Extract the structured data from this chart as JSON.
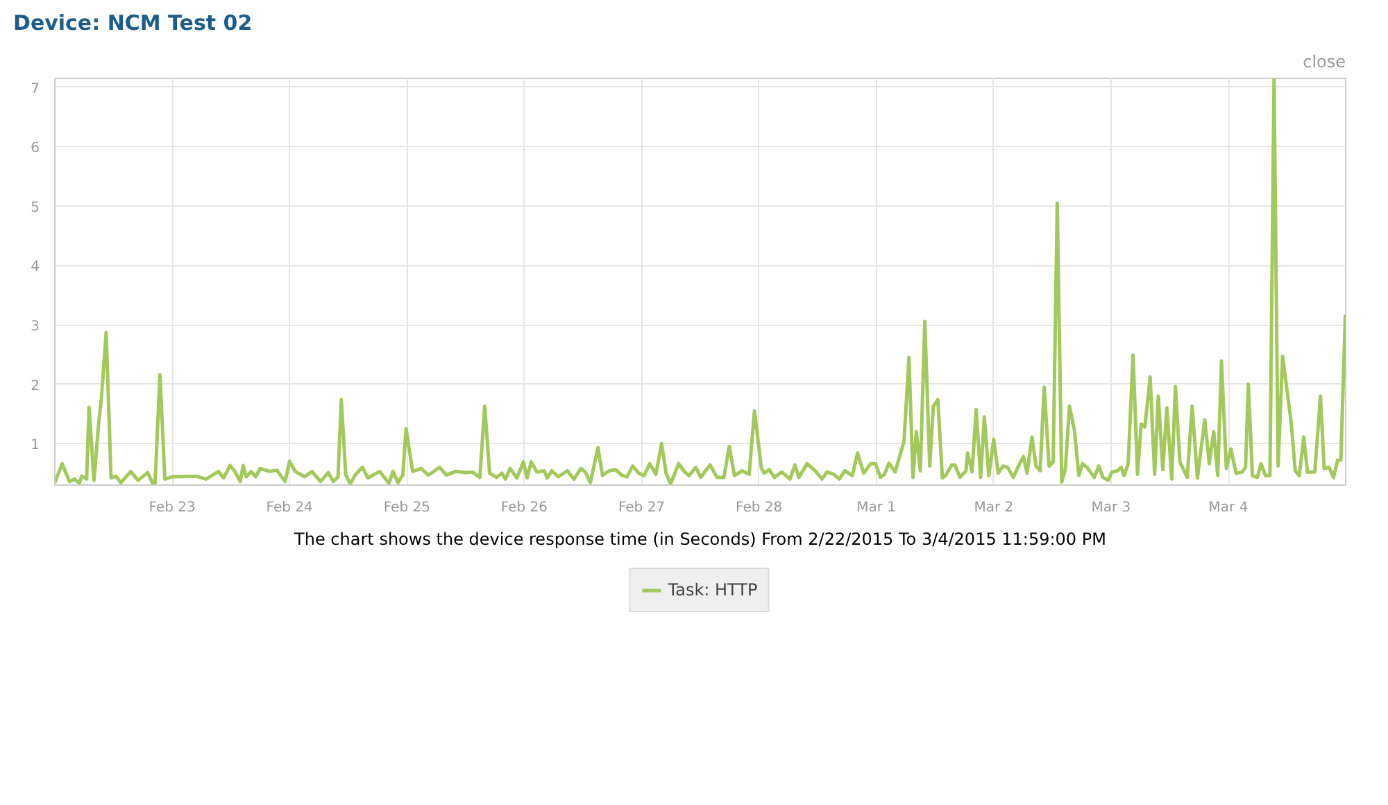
{
  "chart_data": {
    "type": "line",
    "title": "Device: NCM Test 02",
    "annotations": [
      "close",
      "The chart shows the device response time (in Seconds) From 2/22/2015 To 3/4/2015 11:59:00 PM"
    ],
    "xlim": [
      "2015-02-22T00:00",
      "2015-03-04T23:59"
    ],
    "ylim": [
      0.3,
      7.15
    ],
    "xticks": [
      {
        "value": "2015-02-23",
        "label": "Feb 23"
      },
      {
        "value": "2015-02-24",
        "label": "Feb 24"
      },
      {
        "value": "2015-02-25",
        "label": "Feb 25"
      },
      {
        "value": "2015-02-26",
        "label": "Feb 26"
      },
      {
        "value": "2015-02-27",
        "label": "Feb 27"
      },
      {
        "value": "2015-02-28",
        "label": "Feb 28"
      },
      {
        "value": "2015-03-01",
        "label": "Mar 1"
      },
      {
        "value": "2015-03-02",
        "label": "Mar 2"
      },
      {
        "value": "2015-03-03",
        "label": "Mar 3"
      },
      {
        "value": "2015-03-04",
        "label": "Mar 4"
      }
    ],
    "yticks": [
      1,
      2,
      3,
      4,
      5,
      6,
      7
    ],
    "grid": true,
    "legend": "bottom",
    "series": [
      {
        "name": "Task: HTTP",
        "color": "#a3c95c",
        "x": [
          "2015-02-22T00:00",
          "2015-02-22T01:30",
          "2015-02-22T03:00",
          "2015-02-22T04:00",
          "2015-02-22T05:00",
          "2015-02-22T05:30",
          "2015-02-22T06:30",
          "2015-02-22T07:00",
          "2015-02-22T08:00",
          "2015-02-22T09:00",
          "2015-02-22T09:30",
          "2015-02-22T10:30",
          "2015-02-22T11:30",
          "2015-02-22T12:30",
          "2015-02-22T13:30",
          "2015-02-22T15:30",
          "2015-02-22T17:00",
          "2015-02-22T19:00",
          "2015-02-22T20:00",
          "2015-02-22T20:30",
          "2015-02-22T21:30",
          "2015-02-22T22:30",
          "2015-02-23T00:00",
          "2015-02-23T04:50",
          "2015-02-23T06:55",
          "2015-02-23T09:30",
          "2015-02-23T10:30",
          "2015-02-23T11:50",
          "2015-02-23T12:50",
          "2015-02-23T13:55",
          "2015-02-23T14:30",
          "2015-02-23T15:10",
          "2015-02-23T16:10",
          "2015-02-23T17:05",
          "2015-02-23T18:00",
          "2015-02-23T20:00",
          "2015-02-23T21:25",
          "2015-02-23T23:05",
          "2015-02-24T00:00",
          "2015-02-24T01:10",
          "2015-02-24T03:05",
          "2015-02-24T04:35",
          "2015-02-24T06:20",
          "2015-02-24T07:55",
          "2015-02-24T08:55",
          "2015-02-24T09:55",
          "2015-02-24T10:35",
          "2015-02-24T11:30",
          "2015-02-24T12:25",
          "2015-02-24T13:25",
          "2015-02-24T14:55",
          "2015-02-24T16:00",
          "2015-02-24T18:25",
          "2015-02-24T20:20",
          "2015-02-24T21:10",
          "2015-02-24T22:10",
          "2015-02-24T23:10",
          "2015-02-24T23:50",
          "2015-02-25T01:10",
          "2015-02-25T02:55",
          "2015-02-25T04:20",
          "2015-02-25T05:10",
          "2015-02-25T06:40",
          "2015-02-25T08:05",
          "2015-02-25T10:00",
          "2015-02-25T11:55",
          "2015-02-25T13:25",
          "2015-02-25T14:55",
          "2015-02-25T15:55",
          "2015-02-25T16:55",
          "2015-02-25T18:20",
          "2015-02-25T19:25",
          "2015-02-25T20:10",
          "2015-02-25T21:05",
          "2015-02-25T22:30",
          "2015-02-25T23:50",
          "2015-02-26T00:35",
          "2015-02-26T01:25",
          "2015-02-26T02:35",
          "2015-02-26T04:05",
          "2015-02-26T04:40",
          "2015-02-26T05:40",
          "2015-02-26T06:55",
          "2015-02-26T08:50",
          "2015-02-26T10:10",
          "2015-02-26T11:35",
          "2015-02-26T12:30",
          "2015-02-26T13:30",
          "2015-02-26T15:05",
          "2015-02-26T16:00",
          "2015-02-26T17:20",
          "2015-02-26T18:40",
          "2015-02-26T20:05",
          "2015-02-26T21:00",
          "2015-02-26T22:10",
          "2015-02-26T23:25",
          "2015-02-27T00:30",
          "2015-02-27T01:40",
          "2015-02-27T02:55",
          "2015-02-27T04:05",
          "2015-02-27T05:00",
          "2015-02-27T05:55",
          "2015-02-27T07:35",
          "2015-02-27T08:50",
          "2015-02-27T09:40",
          "2015-02-27T11:05",
          "2015-02-27T12:05",
          "2015-02-27T14:00",
          "2015-02-27T15:25",
          "2015-02-27T16:50",
          "2015-02-27T17:55",
          "2015-02-27T19:00",
          "2015-02-27T20:35",
          "2015-02-27T22:00",
          "2015-02-27T23:05",
          "2015-02-28T00:30",
          "2015-02-28T01:05",
          "2015-02-28T02:05",
          "2015-02-28T03:10",
          "2015-02-28T04:40",
          "2015-02-28T06:20",
          "2015-02-28T07:20",
          "2015-02-28T08:10",
          "2015-02-28T09:50",
          "2015-02-28T11:30",
          "2015-02-28T12:55",
          "2015-02-28T13:55",
          "2015-02-28T15:20",
          "2015-02-28T16:25",
          "2015-02-28T17:35",
          "2015-02-28T19:05",
          "2015-02-28T20:10",
          "2015-02-28T21:25",
          "2015-02-28T22:50",
          "2015-02-28T23:50",
          "2015-03-01T00:50",
          "2015-03-01T01:40",
          "2015-03-01T02:35",
          "2015-03-01T03:50",
          "2015-03-01T05:40",
          "2015-03-01T06:40",
          "2015-03-01T07:30",
          "2015-03-01T08:10",
          "2015-03-01T09:00",
          "2015-03-01T09:55",
          "2015-03-01T10:55",
          "2015-03-01T11:40",
          "2015-03-01T12:35",
          "2015-03-01T13:30",
          "2015-03-01T14:10",
          "2015-03-01T15:25",
          "2015-03-01T16:05",
          "2015-03-01T17:05",
          "2015-03-01T18:20",
          "2015-03-01T18:40",
          "2015-03-01T19:35",
          "2015-03-01T20:25",
          "2015-03-01T21:20",
          "2015-03-01T22:05",
          "2015-03-01T23:00",
          "2015-03-02T00:00",
          "2015-03-02T00:55",
          "2015-03-02T01:55",
          "2015-03-02T02:50",
          "2015-03-02T04:00",
          "2015-03-02T05:05",
          "2015-03-02T06:05",
          "2015-03-02T06:50",
          "2015-03-02T07:50",
          "2015-03-02T08:40",
          "2015-03-02T09:30",
          "2015-03-02T10:20",
          "2015-03-02T11:20",
          "2015-03-02T12:10",
          "2015-03-02T13:00",
          "2015-03-02T13:55",
          "2015-03-02T14:40",
          "2015-03-02T15:30",
          "2015-03-02T16:30",
          "2015-03-02T17:25",
          "2015-03-02T18:10",
          "2015-03-02T19:05",
          "2015-03-02T20:35",
          "2015-03-02T21:30",
          "2015-03-02T22:20",
          "2015-03-02T23:25",
          "2015-03-03T00:10",
          "2015-03-03T01:20",
          "2015-03-03T02:05",
          "2015-03-03T02:40",
          "2015-03-03T03:30",
          "2015-03-03T04:30",
          "2015-03-03T05:25",
          "2015-03-03T06:10",
          "2015-03-03T06:55",
          "2015-03-03T08:00",
          "2015-03-03T08:55",
          "2015-03-03T09:40",
          "2015-03-03T10:35",
          "2015-03-03T11:25",
          "2015-03-03T12:25",
          "2015-03-03T13:10",
          "2015-03-03T14:05",
          "2015-03-03T15:35",
          "2015-03-03T16:35",
          "2015-03-03T17:40",
          "2015-03-03T19:10",
          "2015-03-03T20:05",
          "2015-03-03T21:00",
          "2015-03-03T21:50",
          "2015-03-03T22:35",
          "2015-03-03T23:35",
          "2015-03-04T00:30",
          "2015-03-04T01:35",
          "2015-03-04T02:50",
          "2015-03-04T03:30",
          "2015-03-04T04:05",
          "2015-03-04T04:55",
          "2015-03-04T05:55",
          "2015-03-04T06:40",
          "2015-03-04T07:35",
          "2015-03-04T08:30",
          "2015-03-04T09:20",
          "2015-03-04T10:10",
          "2015-03-04T11:05",
          "2015-03-04T12:50",
          "2015-03-04T13:40",
          "2015-03-04T14:30",
          "2015-03-04T15:25",
          "2015-03-04T16:10",
          "2015-03-04T17:40",
          "2015-03-04T18:50",
          "2015-03-04T19:35",
          "2015-03-04T20:35",
          "2015-03-04T21:30",
          "2015-03-04T22:20",
          "2015-03-04T23:00",
          "2015-03-04T23:55"
        ],
        "values": [
          0.34,
          0.66,
          0.36,
          0.4,
          0.33,
          0.45,
          0.4,
          1.61,
          0.38,
          1.37,
          1.73,
          2.87,
          0.42,
          0.45,
          0.34,
          0.53,
          0.38,
          0.51,
          0.33,
          0.33,
          2.16,
          0.4,
          0.44,
          0.45,
          0.4,
          0.53,
          0.42,
          0.63,
          0.53,
          0.36,
          0.63,
          0.44,
          0.53,
          0.44,
          0.58,
          0.53,
          0.55,
          0.36,
          0.7,
          0.53,
          0.44,
          0.53,
          0.36,
          0.51,
          0.36,
          0.44,
          1.74,
          0.47,
          0.32,
          0.47,
          0.6,
          0.42,
          0.53,
          0.33,
          0.53,
          0.34,
          0.47,
          1.25,
          0.53,
          0.58,
          0.47,
          0.51,
          0.6,
          0.47,
          0.53,
          0.51,
          0.52,
          0.43,
          1.63,
          0.5,
          0.43,
          0.5,
          0.4,
          0.58,
          0.42,
          0.69,
          0.42,
          0.69,
          0.52,
          0.54,
          0.42,
          0.54,
          0.44,
          0.54,
          0.4,
          0.58,
          0.52,
          0.34,
          0.93,
          0.46,
          0.54,
          0.56,
          0.46,
          0.44,
          0.62,
          0.5,
          0.46,
          0.66,
          0.48,
          1.0,
          0.5,
          0.32,
          0.66,
          0.52,
          0.46,
          0.6,
          0.43,
          0.64,
          0.43,
          0.43,
          0.95,
          0.46,
          0.54,
          0.48,
          1.55,
          0.58,
          0.5,
          0.56,
          0.43,
          0.52,
          0.4,
          0.64,
          0.43,
          0.66,
          0.54,
          0.4,
          0.52,
          0.48,
          0.4,
          0.54,
          0.46,
          0.84,
          0.5,
          0.66,
          0.66,
          0.43,
          0.48,
          0.67,
          0.52,
          1.04,
          2.45,
          0.43,
          1.2,
          0.54,
          3.06,
          0.62,
          1.63,
          1.74,
          0.42,
          0.46,
          0.64,
          0.64,
          0.43,
          0.54,
          0.84,
          0.52,
          1.57,
          0.43,
          1.45,
          0.46,
          1.07,
          0.5,
          0.62,
          0.6,
          0.43,
          0.62,
          0.78,
          0.5,
          1.11,
          0.62,
          0.54,
          1.95,
          0.62,
          0.69,
          5.05,
          0.35,
          0.58,
          1.63,
          1.23,
          0.46,
          0.66,
          0.6,
          0.43,
          0.62,
          0.43,
          0.38,
          0.52,
          0.54,
          0.6,
          0.46,
          0.66,
          2.49,
          0.48,
          1.33,
          1.28,
          2.12,
          0.48,
          1.8,
          0.56,
          1.6,
          0.4,
          1.96,
          0.69,
          0.43,
          1.63,
          0.42,
          1.4,
          0.66,
          1.2,
          0.46,
          2.39,
          0.58,
          0.91,
          0.5,
          0.52,
          0.6,
          2.0,
          0.46,
          0.43,
          0.66,
          0.46,
          0.46,
          7.15,
          0.62,
          2.47,
          1.36,
          0.54,
          0.46,
          1.11,
          0.52,
          0.52,
          1.8,
          0.58,
          0.6,
          0.43,
          0.72,
          0.72,
          3.17
        ]
      }
    ]
  }
}
